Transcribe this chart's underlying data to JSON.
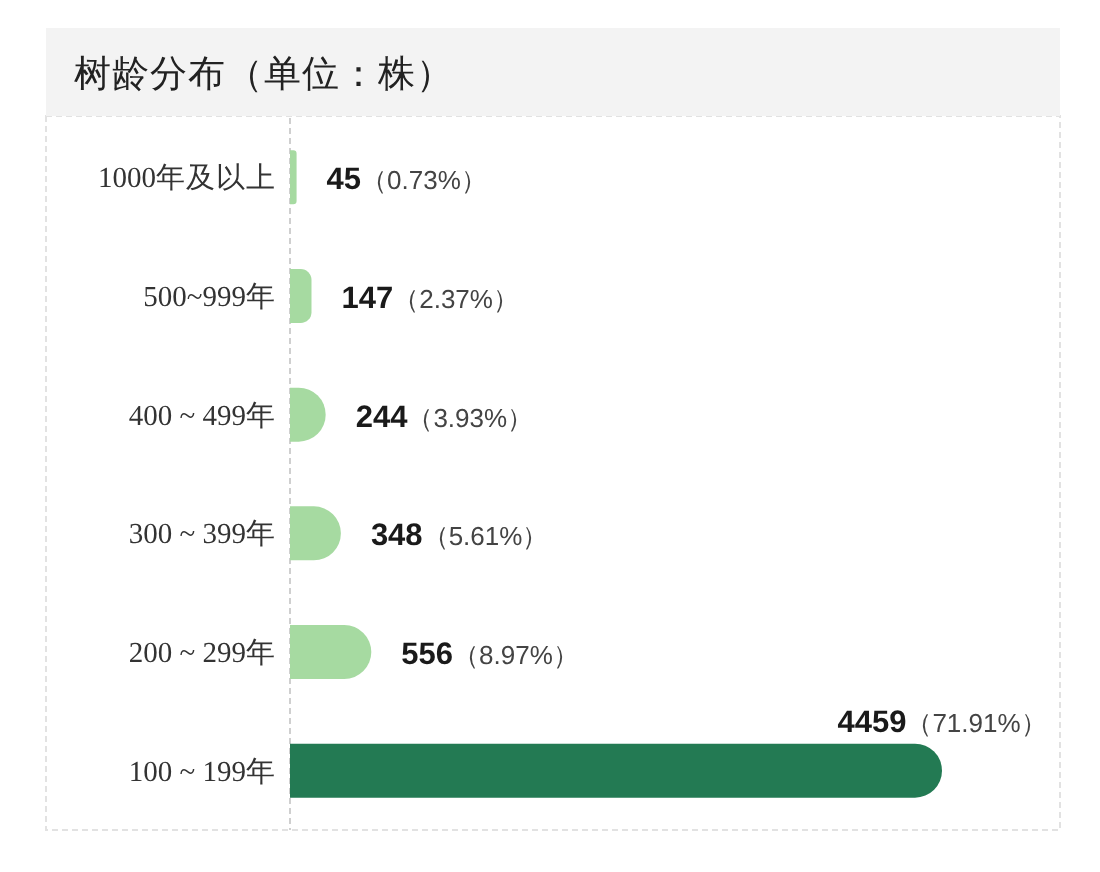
{
  "chart_data": {
    "type": "bar",
    "orientation": "horizontal",
    "title": "树龄分布（单位：株）",
    "categories": [
      "1000年及以上",
      "500~999年",
      "400 ~ 499年",
      "300 ~ 399年",
      "200 ~ 299年",
      "100 ~ 199年"
    ],
    "values": [
      45,
      147,
      244,
      348,
      556,
      4459
    ],
    "colors": [
      "#a6daa1",
      "#a6daa1",
      "#a6daa1",
      "#a6daa1",
      "#a6daa1",
      "#237a53"
    ],
    "value_labels": [
      "**45**（0.73%）",
      "**147**（2.37%）",
      "**244**（3.93%）",
      "**348**（5.61%）",
      "**556**（8.97%）",
      "**4459**（71.91%）"
    ]
  }
}
